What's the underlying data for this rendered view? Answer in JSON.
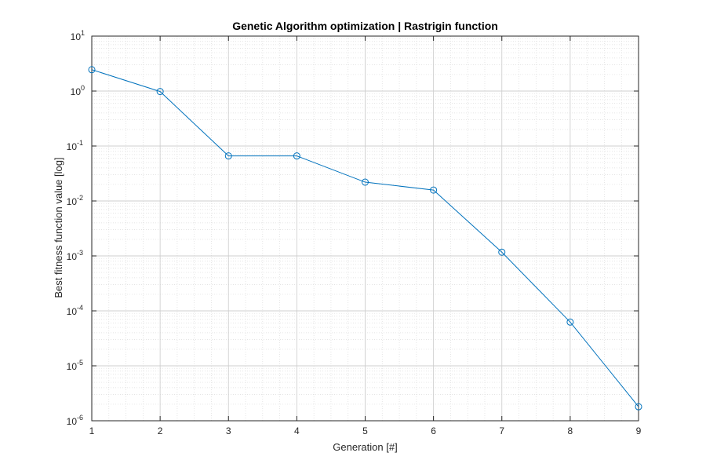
{
  "chart_data": {
    "type": "line",
    "title": "Genetic Algorithm optimization | Rastrigin function",
    "xlabel": "Generation [#]",
    "ylabel": "Best fitness function value [log]",
    "yscale": "log",
    "xlim": [
      1,
      9
    ],
    "ylim": [
      1e-06,
      10
    ],
    "xticks": [
      "1",
      "2",
      "3",
      "4",
      "5",
      "6",
      "7",
      "8",
      "9"
    ],
    "yticks": [
      {
        "base": "10",
        "exp": "1"
      },
      {
        "base": "10",
        "exp": "0"
      },
      {
        "base": "10",
        "exp": "-1"
      },
      {
        "base": "10",
        "exp": "-2"
      },
      {
        "base": "10",
        "exp": "-3"
      },
      {
        "base": "10",
        "exp": "-4"
      },
      {
        "base": "10",
        "exp": "-5"
      },
      {
        "base": "10",
        "exp": "-6"
      }
    ],
    "grid": true,
    "minor_grid": true,
    "marker": "circle",
    "line_color": "#0072BD",
    "series": [
      {
        "x": [
          1,
          2,
          3,
          4,
          5,
          6,
          7,
          8,
          9
        ],
        "values": [
          2.45,
          0.98,
          0.066,
          0.066,
          0.022,
          0.0158,
          0.00117,
          6.25e-05,
          1.8e-06
        ]
      }
    ]
  }
}
